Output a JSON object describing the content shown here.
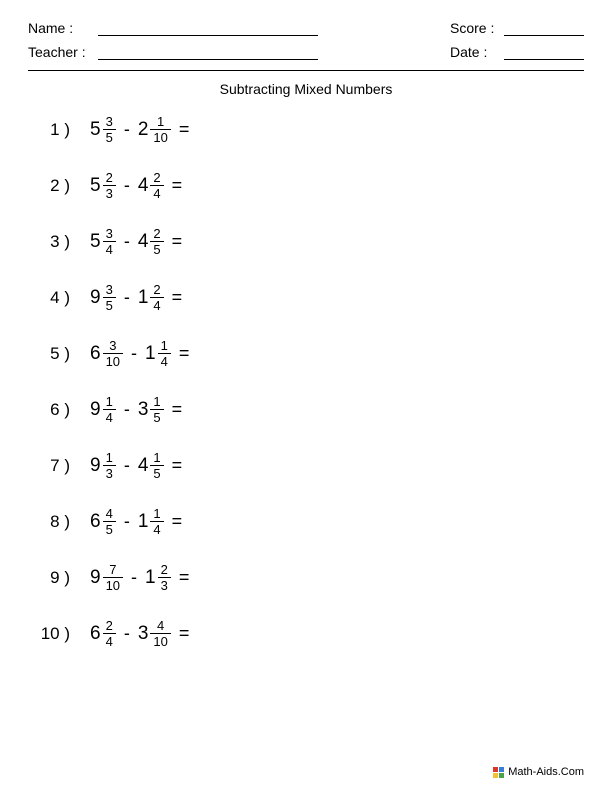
{
  "header": {
    "name_label": "Name :",
    "teacher_label": "Teacher :",
    "score_label": "Score :",
    "date_label": "Date :"
  },
  "title": "Subtracting Mixed Numbers",
  "operator": "-",
  "equals": "=",
  "problems": [
    {
      "n": "1 )",
      "a_whole": "5",
      "a_num": "3",
      "a_den": "5",
      "b_whole": "2",
      "b_num": "1",
      "b_den": "10"
    },
    {
      "n": "2 )",
      "a_whole": "5",
      "a_num": "2",
      "a_den": "3",
      "b_whole": "4",
      "b_num": "2",
      "b_den": "4"
    },
    {
      "n": "3 )",
      "a_whole": "5",
      "a_num": "3",
      "a_den": "4",
      "b_whole": "4",
      "b_num": "2",
      "b_den": "5"
    },
    {
      "n": "4 )",
      "a_whole": "9",
      "a_num": "3",
      "a_den": "5",
      "b_whole": "1",
      "b_num": "2",
      "b_den": "4"
    },
    {
      "n": "5 )",
      "a_whole": "6",
      "a_num": "3",
      "a_den": "10",
      "b_whole": "1",
      "b_num": "1",
      "b_den": "4"
    },
    {
      "n": "6 )",
      "a_whole": "9",
      "a_num": "1",
      "a_den": "4",
      "b_whole": "3",
      "b_num": "1",
      "b_den": "5"
    },
    {
      "n": "7 )",
      "a_whole": "9",
      "a_num": "1",
      "a_den": "3",
      "b_whole": "4",
      "b_num": "1",
      "b_den": "5"
    },
    {
      "n": "8 )",
      "a_whole": "6",
      "a_num": "4",
      "a_den": "5",
      "b_whole": "1",
      "b_num": "1",
      "b_den": "4"
    },
    {
      "n": "9 )",
      "a_whole": "9",
      "a_num": "7",
      "a_den": "10",
      "b_whole": "1",
      "b_num": "2",
      "b_den": "3"
    },
    {
      "n": "10 )",
      "a_whole": "6",
      "a_num": "2",
      "a_den": "4",
      "b_whole": "3",
      "b_num": "4",
      "b_den": "10"
    }
  ],
  "footer": "Math-Aids.Com",
  "colors": {
    "text": "#000000",
    "background": "#ffffff"
  }
}
